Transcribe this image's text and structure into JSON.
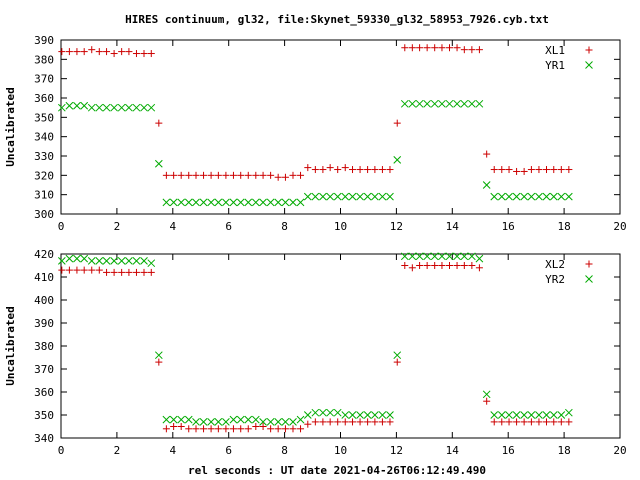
{
  "title": "HIRES continuum, gl32, file:Skynet_59330_gl32_58953_7926.cyb.txt",
  "xlabel": "rel seconds : UT date 2021-04-26T06:12:49.490",
  "chart_data": [
    {
      "type": "scatter",
      "ylabel": "Uncalibrated",
      "xlim": [
        0,
        20
      ],
      "ylim": [
        300,
        390
      ],
      "xticks": [
        0,
        2,
        4,
        6,
        8,
        10,
        12,
        14,
        16,
        18,
        20
      ],
      "yticks": [
        300,
        310,
        320,
        330,
        340,
        350,
        360,
        370,
        380,
        390
      ],
      "legend_position": "top-right",
      "series": [
        {
          "name": "XL1",
          "marker": "plus",
          "color": "#cc0000",
          "x": [
            0.03,
            0.3,
            0.57,
            0.83,
            1.1,
            1.37,
            1.63,
            1.9,
            2.17,
            2.43,
            2.7,
            2.97,
            3.23,
            3.5,
            3.77,
            4.03,
            4.3,
            4.57,
            4.83,
            5.1,
            5.37,
            5.63,
            5.9,
            6.17,
            6.43,
            6.7,
            6.97,
            7.23,
            7.5,
            7.77,
            8.03,
            8.3,
            8.57,
            8.83,
            9.1,
            9.37,
            9.63,
            9.9,
            10.17,
            10.43,
            10.7,
            10.97,
            11.23,
            11.5,
            11.77,
            12.03,
            12.3,
            12.57,
            12.83,
            13.1,
            13.37,
            13.63,
            13.9,
            14.17,
            14.43,
            14.7,
            14.97,
            15.23,
            15.5,
            15.77,
            16.03,
            16.3,
            16.57,
            16.83,
            17.1,
            17.37,
            17.63,
            17.9,
            18.17
          ],
          "y": [
            384,
            384,
            384,
            384,
            385,
            384,
            384,
            383,
            384,
            384,
            383,
            383,
            383,
            347,
            320,
            320,
            320,
            320,
            320,
            320,
            320,
            320,
            320,
            320,
            320,
            320,
            320,
            320,
            320,
            319,
            319,
            320,
            320,
            324,
            323,
            323,
            324,
            323,
            324,
            323,
            323,
            323,
            323,
            323,
            323,
            347,
            386,
            386,
            386,
            386,
            386,
            386,
            386,
            386,
            385,
            385,
            385,
            331,
            323,
            323,
            323,
            322,
            322,
            323,
            323,
            323,
            323,
            323,
            323
          ]
        },
        {
          "name": "YR1",
          "marker": "cross",
          "color": "#00aa00",
          "x": [
            0.03,
            0.3,
            0.57,
            0.83,
            1.1,
            1.37,
            1.63,
            1.9,
            2.17,
            2.43,
            2.7,
            2.97,
            3.23,
            3.5,
            3.77,
            4.03,
            4.3,
            4.57,
            4.83,
            5.1,
            5.37,
            5.63,
            5.9,
            6.17,
            6.43,
            6.7,
            6.97,
            7.23,
            7.5,
            7.77,
            8.03,
            8.3,
            8.57,
            8.83,
            9.1,
            9.37,
            9.63,
            9.9,
            10.17,
            10.43,
            10.7,
            10.97,
            11.23,
            11.5,
            11.77,
            12.03,
            12.3,
            12.57,
            12.83,
            13.1,
            13.37,
            13.63,
            13.9,
            14.17,
            14.43,
            14.7,
            14.97,
            15.23,
            15.5,
            15.77,
            16.03,
            16.3,
            16.57,
            16.83,
            17.1,
            17.37,
            17.63,
            17.9,
            18.17
          ],
          "y": [
            355,
            356,
            356,
            356,
            355,
            355,
            355,
            355,
            355,
            355,
            355,
            355,
            355,
            326,
            306,
            306,
            306,
            306,
            306,
            306,
            306,
            306,
            306,
            306,
            306,
            306,
            306,
            306,
            306,
            306,
            306,
            306,
            306,
            309,
            309,
            309,
            309,
            309,
            309,
            309,
            309,
            309,
            309,
            309,
            309,
            328,
            357,
            357,
            357,
            357,
            357,
            357,
            357,
            357,
            357,
            357,
            357,
            315,
            309,
            309,
            309,
            309,
            309,
            309,
            309,
            309,
            309,
            309,
            309
          ]
        }
      ]
    },
    {
      "type": "scatter",
      "ylabel": "Uncalibrated",
      "xlim": [
        0,
        20
      ],
      "ylim": [
        340,
        420
      ],
      "xticks": [
        0,
        2,
        4,
        6,
        8,
        10,
        12,
        14,
        16,
        18,
        20
      ],
      "yticks": [
        340,
        350,
        360,
        370,
        380,
        390,
        400,
        410,
        420
      ],
      "legend_position": "top-right",
      "series": [
        {
          "name": "XL2",
          "marker": "plus",
          "color": "#cc0000",
          "x": [
            0.03,
            0.3,
            0.57,
            0.83,
            1.1,
            1.37,
            1.63,
            1.9,
            2.17,
            2.43,
            2.7,
            2.97,
            3.23,
            3.5,
            3.77,
            4.03,
            4.3,
            4.57,
            4.83,
            5.1,
            5.37,
            5.63,
            5.9,
            6.17,
            6.43,
            6.7,
            6.97,
            7.23,
            7.5,
            7.77,
            8.03,
            8.3,
            8.57,
            8.83,
            9.1,
            9.37,
            9.63,
            9.9,
            10.17,
            10.43,
            10.7,
            10.97,
            11.23,
            11.5,
            11.77,
            12.03,
            12.3,
            12.57,
            12.83,
            13.1,
            13.37,
            13.63,
            13.9,
            14.17,
            14.43,
            14.7,
            14.97,
            15.23,
            15.5,
            15.77,
            16.03,
            16.3,
            16.57,
            16.83,
            17.1,
            17.37,
            17.63,
            17.9,
            18.17
          ],
          "y": [
            413,
            413,
            413,
            413,
            413,
            413,
            412,
            412,
            412,
            412,
            412,
            412,
            412,
            373,
            344,
            345,
            345,
            344,
            344,
            344,
            344,
            344,
            344,
            344,
            344,
            344,
            345,
            345,
            344,
            344,
            344,
            344,
            344,
            346,
            347,
            347,
            347,
            347,
            347,
            347,
            347,
            347,
            347,
            347,
            347,
            373,
            415,
            414,
            415,
            415,
            415,
            415,
            415,
            415,
            415,
            415,
            414,
            356,
            347,
            347,
            347,
            347,
            347,
            347,
            347,
            347,
            347,
            347,
            347
          ]
        },
        {
          "name": "YR2",
          "marker": "cross",
          "color": "#00aa00",
          "x": [
            0.03,
            0.3,
            0.57,
            0.83,
            1.1,
            1.37,
            1.63,
            1.9,
            2.17,
            2.43,
            2.7,
            2.97,
            3.23,
            3.5,
            3.77,
            4.03,
            4.3,
            4.57,
            4.83,
            5.1,
            5.37,
            5.63,
            5.9,
            6.17,
            6.43,
            6.7,
            6.97,
            7.23,
            7.5,
            7.77,
            8.03,
            8.3,
            8.57,
            8.83,
            9.1,
            9.37,
            9.63,
            9.9,
            10.17,
            10.43,
            10.7,
            10.97,
            11.23,
            11.5,
            11.77,
            12.03,
            12.3,
            12.57,
            12.83,
            13.1,
            13.37,
            13.63,
            13.9,
            14.17,
            14.43,
            14.7,
            14.97,
            15.23,
            15.5,
            15.77,
            16.03,
            16.3,
            16.57,
            16.83,
            17.1,
            17.37,
            17.63,
            17.9,
            18.17
          ],
          "y": [
            417,
            418,
            418,
            418,
            417,
            417,
            417,
            417,
            417,
            417,
            417,
            417,
            416,
            376,
            348,
            348,
            348,
            348,
            347,
            347,
            347,
            347,
            347,
            348,
            348,
            348,
            348,
            347,
            347,
            347,
            347,
            347,
            348,
            350,
            351,
            351,
            351,
            351,
            350,
            350,
            350,
            350,
            350,
            350,
            350,
            376,
            419,
            419,
            419,
            419,
            419,
            419,
            419,
            419,
            419,
            419,
            418,
            359,
            350,
            350,
            350,
            350,
            350,
            350,
            350,
            350,
            350,
            350,
            351
          ]
        }
      ]
    }
  ]
}
